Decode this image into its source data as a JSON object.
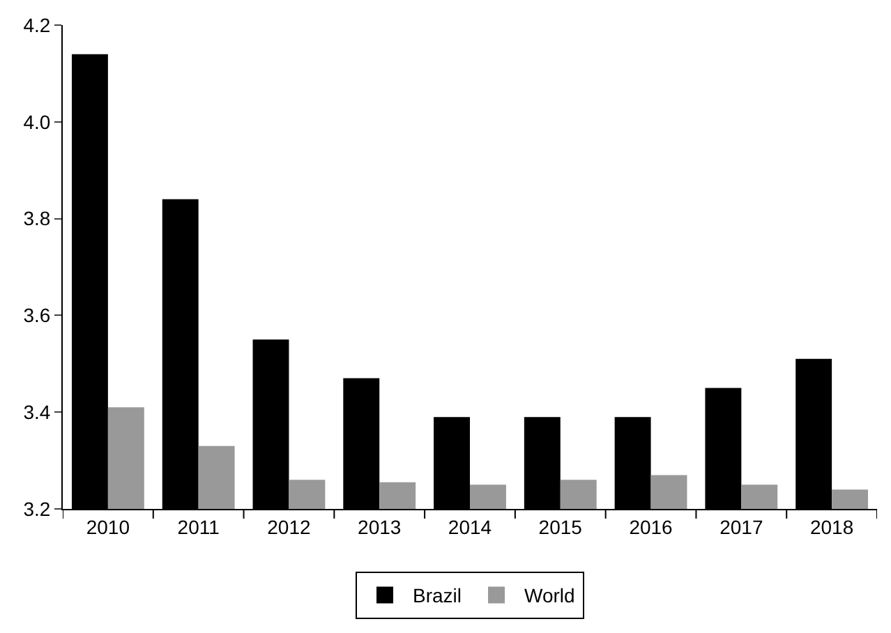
{
  "chart_data": {
    "type": "bar",
    "categories": [
      "2010",
      "2011",
      "2012",
      "2013",
      "2014",
      "2015",
      "2016",
      "2017",
      "2018"
    ],
    "series": [
      {
        "name": "Brazil",
        "color": "#000000",
        "values": [
          4.14,
          3.84,
          3.55,
          3.47,
          3.39,
          3.39,
          3.39,
          3.45,
          3.51
        ]
      },
      {
        "name": "World",
        "color": "#999999",
        "values": [
          3.41,
          3.33,
          3.26,
          3.255,
          3.25,
          3.26,
          3.27,
          3.25,
          3.24
        ]
      }
    ],
    "ylim": [
      3.2,
      4.2
    ],
    "yticks": [
      {
        "value": 3.2,
        "label": "3.2"
      },
      {
        "value": 3.4,
        "label": "3.4"
      },
      {
        "value": 3.6,
        "label": "3.6"
      },
      {
        "value": 3.8,
        "label": "3.8"
      },
      {
        "value": 4.0,
        "label": "4.0"
      },
      {
        "value": 4.2,
        "label": "4.2"
      }
    ],
    "grid": false,
    "legend": "bottom"
  }
}
